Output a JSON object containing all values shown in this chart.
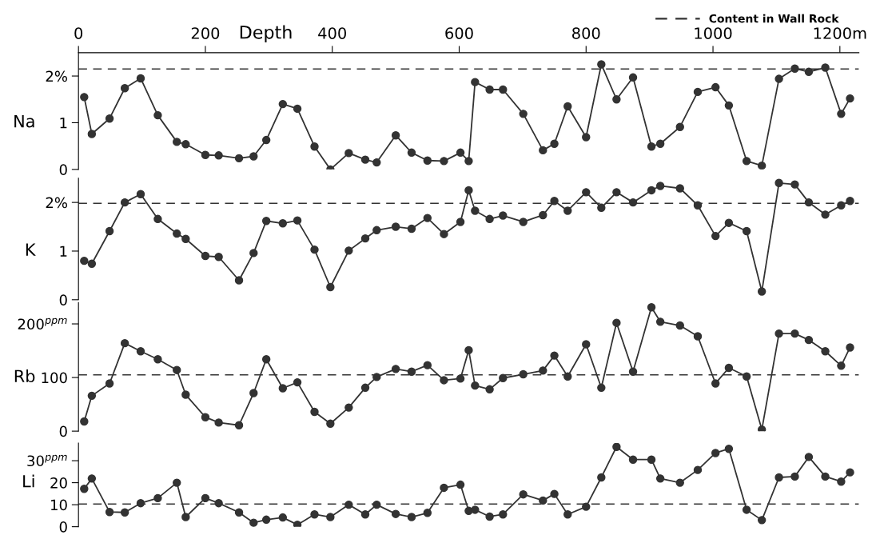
{
  "chart_data": [
    {
      "type": "line",
      "xlabel": "Depth",
      "ylabel": "Na",
      "legend": "top right",
      "marker": "circle",
      "line_style": "solid",
      "xlim": [
        0,
        1230
      ],
      "xticks": [
        0,
        200,
        400,
        600,
        800,
        1000,
        {
          "value": 1200,
          "label": "1200m"
        }
      ],
      "ylim": [
        0,
        2.5
      ],
      "yticks": [
        0,
        1,
        {
          "value": 2,
          "label": "2%"
        }
      ],
      "ref_lines": [
        {
          "axis": "y",
          "value": 2.15,
          "label": "Content in Wall Rock",
          "line_style": "dashed",
          "color": "#333333"
        }
      ],
      "x": [
        9,
        21,
        49,
        73,
        98,
        125,
        155,
        169,
        200,
        221,
        253,
        276,
        296,
        322,
        345,
        372,
        397,
        426,
        452,
        470,
        500,
        525,
        550,
        576,
        602,
        615,
        625,
        648,
        669,
        701,
        732,
        750,
        771,
        800,
        824,
        848,
        874,
        903,
        917,
        948,
        976,
        1004,
        1025,
        1053,
        1077,
        1104,
        1129,
        1151,
        1177,
        1202,
        1216
      ],
      "series": [
        {
          "color": "#333333",
          "values": [
            1.55,
            0.76,
            1.09,
            1.74,
            1.95,
            1.16,
            0.59,
            0.54,
            0.31,
            0.3,
            0.24,
            0.28,
            0.63,
            1.4,
            1.3,
            0.49,
            0.0,
            0.35,
            0.21,
            0.15,
            0.73,
            0.36,
            0.19,
            0.18,
            0.36,
            0.18,
            1.87,
            1.71,
            1.71,
            1.19,
            0.41,
            0.55,
            1.35,
            0.69,
            2.25,
            1.5,
            1.97,
            0.49,
            0.55,
            0.91,
            1.66,
            1.76,
            1.37,
            0.18,
            0.08,
            1.94,
            2.16,
            2.09,
            2.18,
            1.19,
            1.52
          ]
        }
      ]
    },
    {
      "type": "line",
      "ylabel": "K",
      "marker": "circle",
      "line_style": "solid",
      "tick_labels": "y",
      "xlim": [
        0,
        1230
      ],
      "ylim": [
        0,
        2.5
      ],
      "yticks": [
        0,
        1,
        {
          "value": 2,
          "label": "2%"
        }
      ],
      "ref_lines": [
        {
          "axis": "y",
          "value": 1.98,
          "line_style": "dashed",
          "color": "#333333"
        }
      ],
      "x": [
        9,
        21,
        49,
        73,
        98,
        125,
        155,
        169,
        200,
        221,
        253,
        276,
        296,
        322,
        345,
        372,
        397,
        426,
        452,
        470,
        500,
        525,
        550,
        576,
        602,
        615,
        625,
        648,
        669,
        701,
        732,
        750,
        771,
        800,
        824,
        848,
        874,
        903,
        917,
        948,
        976,
        1004,
        1025,
        1053,
        1077,
        1104,
        1129,
        1151,
        1177,
        1202,
        1216
      ],
      "series": [
        {
          "color": "#333333",
          "values": [
            0.8,
            0.74,
            1.41,
            2.0,
            2.17,
            1.66,
            1.36,
            1.25,
            0.9,
            0.88,
            0.4,
            0.96,
            1.62,
            1.57,
            1.63,
            1.03,
            0.26,
            1.01,
            1.26,
            1.43,
            1.5,
            1.46,
            1.68,
            1.35,
            1.6,
            2.25,
            1.83,
            1.66,
            1.73,
            1.6,
            1.74,
            2.03,
            1.83,
            2.21,
            1.89,
            2.21,
            2.0,
            2.25,
            2.34,
            2.29,
            1.94,
            1.31,
            1.58,
            1.41,
            0.17,
            2.4,
            2.37,
            2.0,
            1.75,
            1.94,
            2.03
          ]
        }
      ]
    },
    {
      "type": "line",
      "ylabel": "Rb",
      "marker": "circle",
      "line_style": "solid",
      "tick_labels": "y",
      "xlim": [
        0,
        1230
      ],
      "ylim": [
        0,
        240
      ],
      "yticks": [
        0,
        100,
        {
          "value": 200,
          "label": "200$^{ppm}$"
        }
      ],
      "ref_lines": [
        {
          "axis": "y",
          "value": 105,
          "line_style": "dashed",
          "color": "#333333"
        }
      ],
      "x": [
        9,
        21,
        49,
        73,
        98,
        125,
        155,
        169,
        200,
        221,
        253,
        276,
        296,
        322,
        345,
        372,
        397,
        426,
        452,
        470,
        500,
        525,
        550,
        576,
        602,
        615,
        625,
        648,
        669,
        701,
        732,
        750,
        771,
        800,
        824,
        848,
        874,
        903,
        917,
        948,
        976,
        1004,
        1025,
        1053,
        1077,
        1104,
        1129,
        1151,
        1177,
        1202,
        1216
      ],
      "series": [
        {
          "color": "#333333",
          "values": [
            18,
            66,
            89,
            164,
            149,
            134,
            114,
            68,
            26,
            16,
            11,
            71,
            134,
            80,
            91,
            36,
            14,
            44,
            81,
            101,
            116,
            111,
            123,
            95,
            98,
            151,
            85,
            78,
            99,
            106,
            113,
            141,
            102,
            162,
            81,
            202,
            111,
            231,
            204,
            197,
            177,
            89,
            118,
            102,
            3,
            182,
            182,
            170,
            149,
            122,
            156
          ]
        }
      ]
    },
    {
      "type": "line",
      "ylabel": "Li",
      "marker": "circle",
      "line_style": "solid",
      "tick_labels": "y",
      "xlim": [
        0,
        1230
      ],
      "ylim": [
        0,
        38
      ],
      "yticks": [
        0,
        10,
        20,
        {
          "value": 30,
          "label": "30$^{ppm}$"
        }
      ],
      "ref_lines": [
        {
          "axis": "y",
          "value": 10.3,
          "line_style": "dashed",
          "color": "#333333"
        }
      ],
      "x": [
        9,
        21,
        49,
        73,
        98,
        125,
        155,
        169,
        200,
        221,
        253,
        276,
        296,
        322,
        345,
        372,
        397,
        426,
        452,
        470,
        500,
        525,
        550,
        576,
        602,
        615,
        625,
        648,
        669,
        701,
        732,
        750,
        771,
        800,
        824,
        848,
        874,
        903,
        917,
        948,
        976,
        1004,
        1025,
        1053,
        1077,
        1104,
        1129,
        1151,
        1177,
        1202,
        1216
      ],
      "series": [
        {
          "color": "#333333",
          "values": [
            17.2,
            21.9,
            6.7,
            6.5,
            10.7,
            13.0,
            20.0,
            4.4,
            13.0,
            10.7,
            6.5,
            1.8,
            3.2,
            4.2,
            0.9,
            5.6,
            4.4,
            10,
            5.6,
            10,
            5.8,
            4.4,
            6.3,
            17.7,
            19.1,
            7.2,
            7.7,
            4.6,
            5.6,
            14.7,
            11.9,
            14.9,
            5.6,
            9.1,
            22.4,
            36.3,
            30.5,
            30.5,
            21.9,
            20.0,
            25.8,
            33.5,
            35.4,
            7.7,
            3.0,
            22.4,
            22.8,
            31.7,
            22.8,
            20.5,
            24.7
          ]
        }
      ]
    }
  ]
}
